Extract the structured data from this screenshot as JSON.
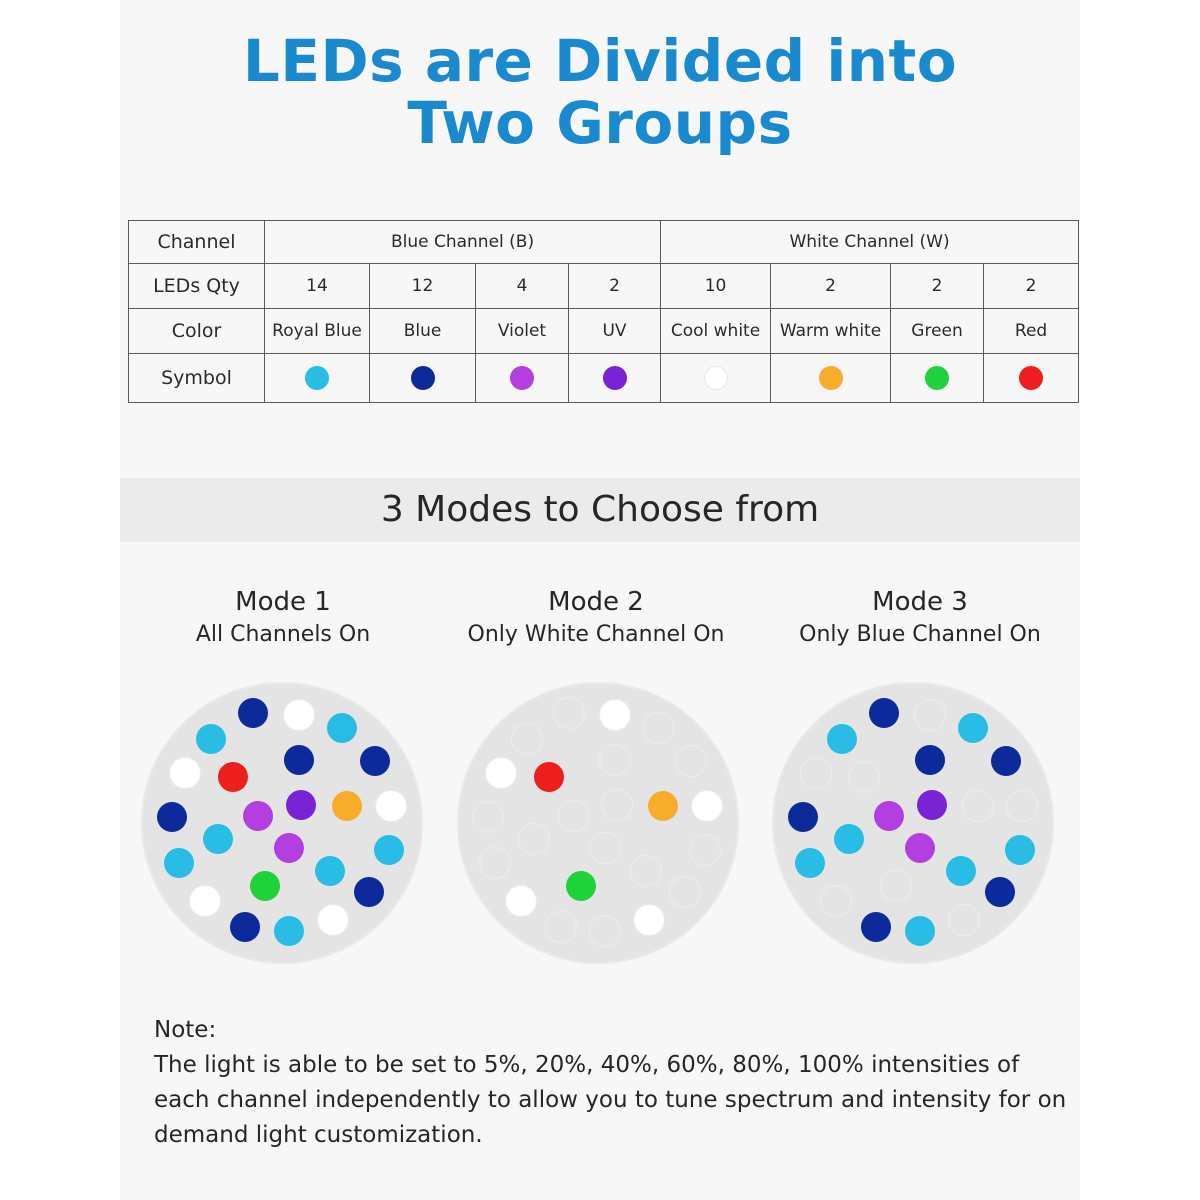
{
  "title": {
    "line1": "LEDs are Divided into",
    "line2": "Two Groups"
  },
  "colors": {
    "title": "#1a8ad0",
    "royal_blue": "#29bde6",
    "blue": "#0d2a9b",
    "violet": "#b33fe0",
    "uv": "#7a22d6",
    "cool_white": "#ffffff",
    "warm_white": "#f8ac2c",
    "green": "#1fd13b",
    "red": "#ef1e1e"
  },
  "table": {
    "row_labels": {
      "channel": "Channel",
      "qty": "LEDs Qty",
      "color": "Color",
      "symbol": "Symbol"
    },
    "groups": {
      "blue": "Blue Channel (B)",
      "white": "White Channel (W)"
    },
    "leds": [
      {
        "qty": "14",
        "color_name": "Royal Blue",
        "icon": "royal-blue-dot-icon"
      },
      {
        "qty": "12",
        "color_name": "Blue",
        "icon": "blue-dot-icon"
      },
      {
        "qty": "4",
        "color_name": "Violet",
        "icon": "violet-dot-icon"
      },
      {
        "qty": "2",
        "color_name": "UV",
        "icon": "uv-dot-icon"
      },
      {
        "qty": "10",
        "color_name": "Cool white",
        "icon": "cool-white-dot-icon"
      },
      {
        "qty": "2",
        "color_name": "Warm white",
        "icon": "warm-white-dot-icon"
      },
      {
        "qty": "2",
        "color_name": "Green",
        "icon": "green-dot-icon"
      },
      {
        "qty": "2",
        "color_name": "Red",
        "icon": "red-dot-icon"
      }
    ]
  },
  "modes_heading": "3 Modes to Choose from",
  "modes": [
    {
      "name": "Mode 1",
      "description": "All Channels On"
    },
    {
      "name": "Mode 2",
      "description": "Only White Channel On"
    },
    {
      "name": "Mode 3",
      "description": "Only Blue Channel On"
    }
  ],
  "note": {
    "label": "Note:",
    "text": "The light is able to be set to 5%, 20%, 40%, 60%, 80%, 100% intensities of each channel independently to allow you to tune spectrum and intensity for on demand light customization."
  }
}
